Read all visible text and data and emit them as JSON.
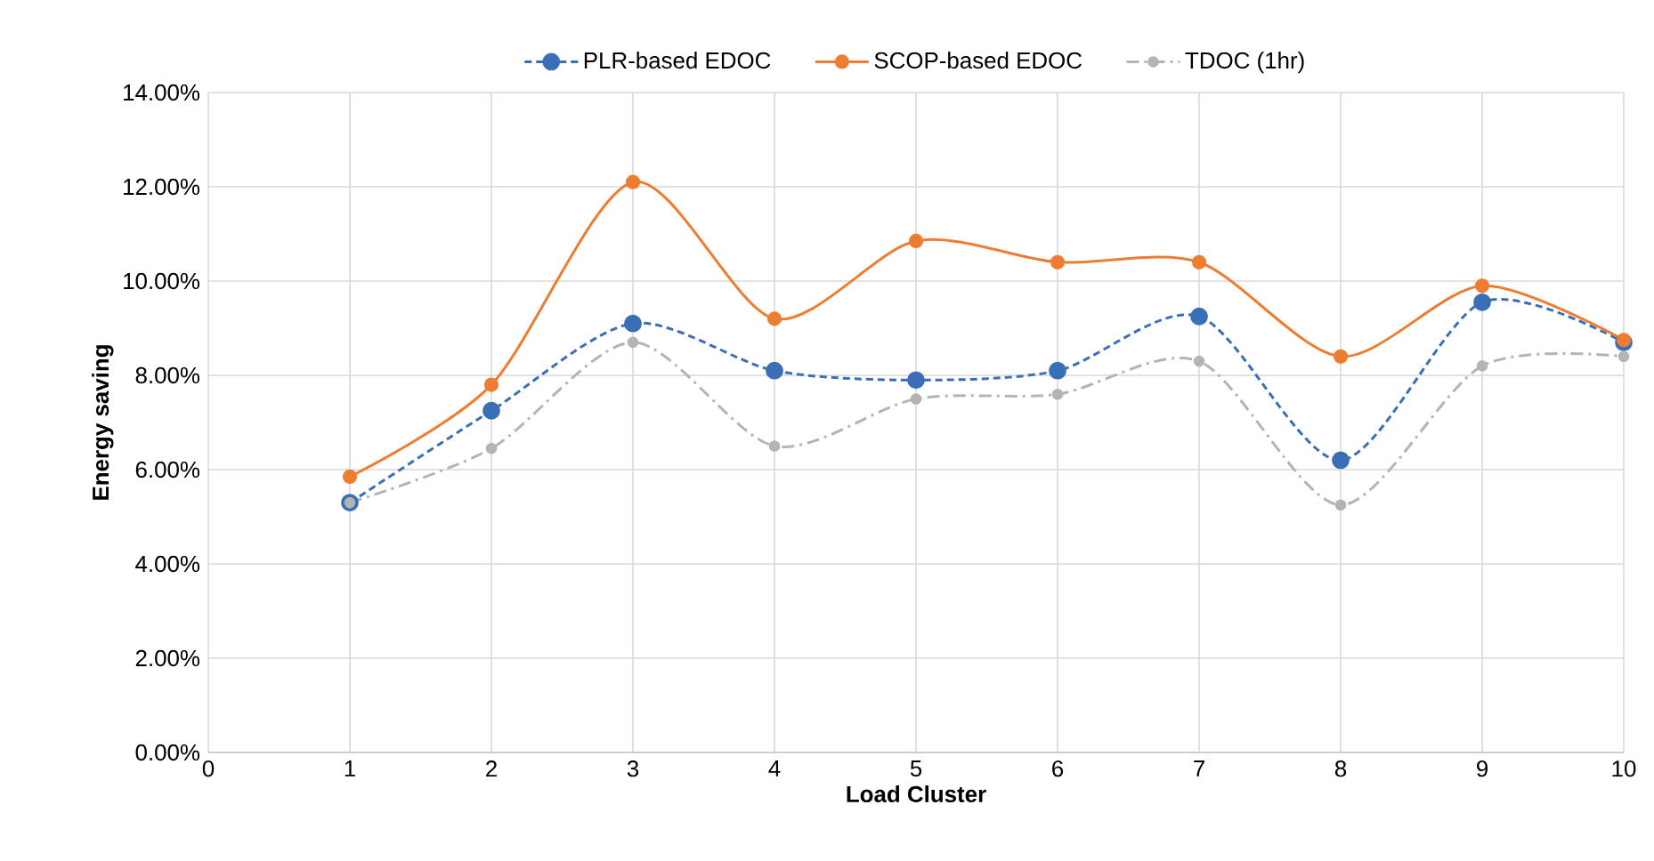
{
  "chart_data": {
    "type": "line",
    "xlabel": "Load Cluster",
    "ylabel": "Energy saving",
    "x": [
      1,
      2,
      3,
      4,
      5,
      6,
      7,
      8,
      9,
      10
    ],
    "series": [
      {
        "name": "PLR-based EDOC",
        "color": "#3a6fb7",
        "line_style": "dashed",
        "values": [
          5.3,
          7.25,
          9.1,
          8.1,
          7.9,
          8.1,
          9.25,
          6.2,
          9.55,
          8.7
        ]
      },
      {
        "name": "SCOP-based EDOC",
        "color": "#ed7d31",
        "line_style": "solid",
        "values": [
          5.85,
          7.8,
          12.1,
          9.2,
          10.85,
          10.4,
          10.4,
          8.4,
          9.9,
          8.75
        ]
      },
      {
        "name": "TDOC (1hr)",
        "color": "#b4b4b4",
        "line_style": "dashdot",
        "values": [
          5.3,
          6.45,
          8.7,
          6.5,
          7.5,
          7.6,
          8.3,
          5.25,
          8.2,
          8.4
        ]
      }
    ],
    "xlim": [
      0,
      10
    ],
    "xticks": [
      0,
      1,
      2,
      3,
      4,
      5,
      6,
      7,
      8,
      9,
      10
    ],
    "ylim": [
      0,
      14
    ],
    "yticks": [
      {
        "value": 0,
        "label": "0.00%"
      },
      {
        "value": 2,
        "label": "2.00%"
      },
      {
        "value": 4,
        "label": "4.00%"
      },
      {
        "value": 6,
        "label": "6.00%"
      },
      {
        "value": 8,
        "label": "8.00%"
      },
      {
        "value": 10,
        "label": "10.00%"
      },
      {
        "value": 12,
        "label": "12.00%"
      },
      {
        "value": 14,
        "label": "14.00%"
      }
    ],
    "grid": true,
    "legend": "top",
    "marker": "circle"
  }
}
